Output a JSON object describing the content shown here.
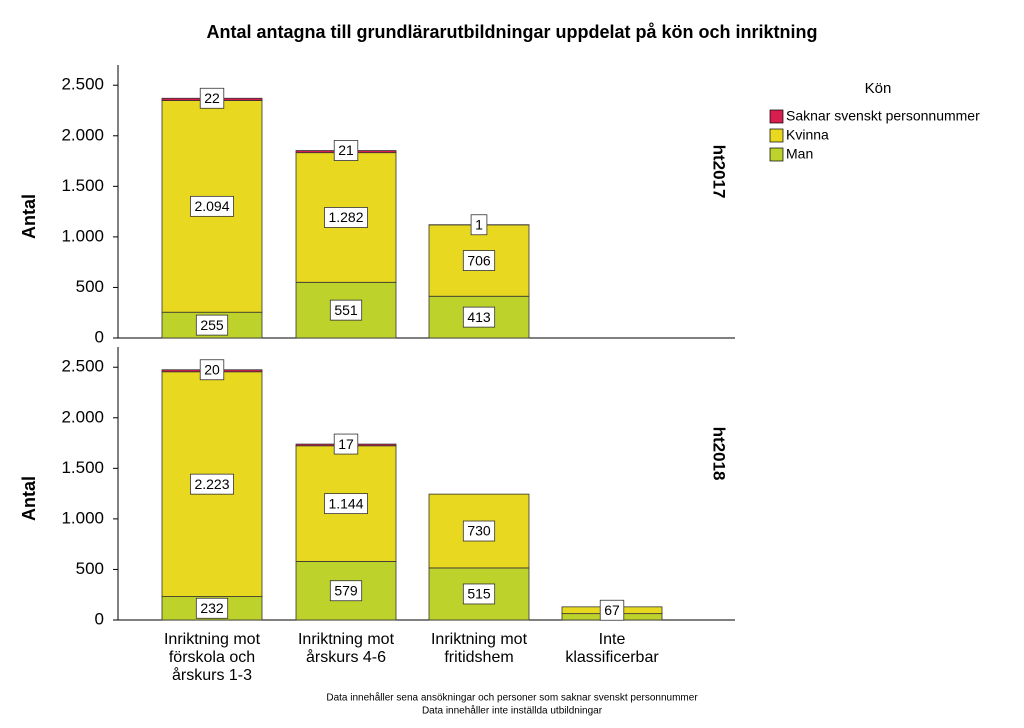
{
  "chart_data": {
    "type": "bar",
    "stacked": true,
    "title": "Antal antagna till grundlärarutbildningar uppdelat på kön och inriktning",
    "y_label": "Antal",
    "legend_title": "Kön",
    "footnotes": [
      "Data innehåller sena ansökningar och personer som saknar svenskt personnummer",
      "Data innehåller inte inställda utbildningar"
    ],
    "categories": [
      "Inriktning mot\nförskola och\nårskurs 1-3",
      "Inriktning mot\nårskurs 4-6",
      "Inriktning mot\nfritidshem",
      "Inte\nklassificerbar"
    ],
    "ylim": [
      0,
      2700
    ],
    "yticks": [
      0,
      500,
      {
        "value": 1000,
        "label": "1.000"
      },
      {
        "value": 1500,
        "label": "1.500"
      },
      {
        "value": 2000,
        "label": "2.000"
      },
      {
        "value": 2500,
        "label": "2.500"
      }
    ],
    "panels": [
      {
        "label": "ht2017",
        "series": [
          {
            "name": "Saknar svenskt personnummer",
            "color": "#d81e4f",
            "values": [
              22,
              21,
              1,
              null
            ],
            "value_labels": [
              "22",
              "21",
              "1",
              null
            ]
          },
          {
            "name": "Kvinna",
            "color": "#e8d81f",
            "values": [
              2094,
              1282,
              706,
              null
            ],
            "value_labels": [
              "2.094",
              "1.282",
              "706",
              null
            ]
          },
          {
            "name": "Man",
            "color": "#bed22c",
            "values": [
              255,
              551,
              413,
              null
            ],
            "value_labels": [
              "255",
              "551",
              "413",
              null
            ]
          }
        ]
      },
      {
        "label": "ht2018",
        "series": [
          {
            "name": "Saknar svenskt personnummer",
            "color": "#d81e4f",
            "values": [
              20,
              17,
              null,
              null
            ],
            "value_labels": [
              "20",
              "17",
              null,
              null
            ]
          },
          {
            "name": "Kvinna",
            "color": "#e8d81f",
            "values": [
              2223,
              1144,
              730,
              67
            ],
            "value_labels": [
              "2.223",
              "1.144",
              "730",
              "67"
            ]
          },
          {
            "name": "Man",
            "color": "#bed22c",
            "values": [
              232,
              579,
              515,
              63
            ],
            "value_labels": [
              "232",
              "579",
              "515",
              null
            ]
          }
        ]
      }
    ]
  }
}
